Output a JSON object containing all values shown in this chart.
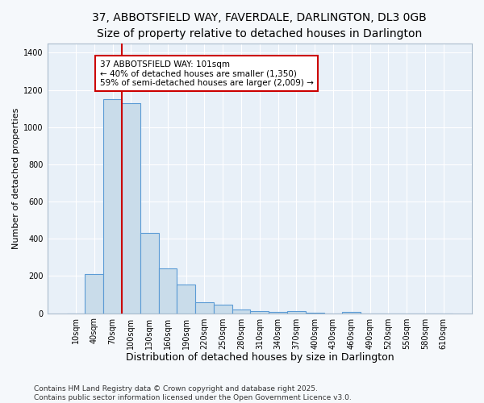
{
  "title_line1": "37, ABBOTSFIELD WAY, FAVERDALE, DARLINGTON, DL3 0GB",
  "title_line2": "Size of property relative to detached houses in Darlington",
  "xlabel": "Distribution of detached houses by size in Darlington",
  "ylabel": "Number of detached properties",
  "categories": [
    "10sqm",
    "40sqm",
    "70sqm",
    "100sqm",
    "130sqm",
    "160sqm",
    "190sqm",
    "220sqm",
    "250sqm",
    "280sqm",
    "310sqm",
    "340sqm",
    "370sqm",
    "400sqm",
    "430sqm",
    "460sqm",
    "490sqm",
    "520sqm",
    "550sqm",
    "580sqm",
    "610sqm"
  ],
  "values": [
    0,
    210,
    1150,
    1130,
    430,
    240,
    155,
    60,
    45,
    20,
    10,
    5,
    10,
    3,
    0,
    5,
    0,
    0,
    0,
    0,
    0
  ],
  "bar_color": "#c9dcea",
  "bar_edge_color": "#5b9bd5",
  "bar_width": 1.0,
  "property_line_x": 3.5,
  "property_line_color": "#cc0000",
  "annotation_title": "37 ABBOTSFIELD WAY: 101sqm",
  "annotation_line1": "← 40% of detached houses are smaller (1,350)",
  "annotation_line2": "59% of semi-detached houses are larger (2,009) →",
  "annotation_box_color": "#ffffff",
  "annotation_box_edge": "#cc0000",
  "ylim": [
    0,
    1450
  ],
  "yticks": [
    0,
    200,
    400,
    600,
    800,
    1000,
    1200,
    1400
  ],
  "plot_bg_color": "#e8f0f8",
  "fig_bg_color": "#f5f8fb",
  "grid_color": "#ffffff",
  "footer_line1": "Contains HM Land Registry data © Crown copyright and database right 2025.",
  "footer_line2": "Contains public sector information licensed under the Open Government Licence v3.0.",
  "title_fontsize": 10,
  "subtitle_fontsize": 9,
  "xlabel_fontsize": 9,
  "ylabel_fontsize": 8,
  "tick_fontsize": 7,
  "annotation_fontsize": 7.5,
  "footer_fontsize": 6.5
}
